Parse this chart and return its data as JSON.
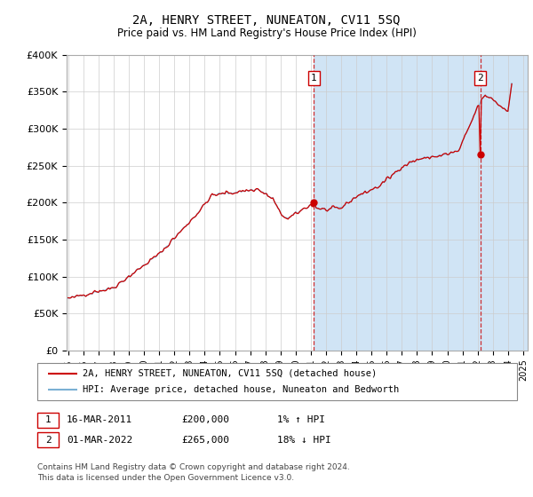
{
  "title": "2A, HENRY STREET, NUNEATON, CV11 5SQ",
  "subtitle": "Price paid vs. HM Land Registry's House Price Index (HPI)",
  "ylabel_ticks": [
    "£0",
    "£50K",
    "£100K",
    "£150K",
    "£200K",
    "£250K",
    "£300K",
    "£350K",
    "£400K"
  ],
  "ytick_vals": [
    0,
    50000,
    100000,
    150000,
    200000,
    250000,
    300000,
    350000,
    400000
  ],
  "ylim": [
    0,
    400000
  ],
  "xlim_start": 1994.9,
  "xlim_end": 2025.3,
  "bg_color": "#e8f0f8",
  "plot_bg": "#ffffff",
  "shade_color": "#d0e4f5",
  "line_color_hpi": "#7ab0d4",
  "line_color_price": "#cc0000",
  "point1_x": 2011.21,
  "point1_y": 200000,
  "point2_x": 2022.17,
  "point2_y": 265000,
  "vline1_x": 2011.21,
  "vline2_x": 2022.17,
  "legend_label1": "2A, HENRY STREET, NUNEATON, CV11 5SQ (detached house)",
  "legend_label2": "HPI: Average price, detached house, Nuneaton and Bedworth",
  "note1_num": "1",
  "note1_date": "16-MAR-2011",
  "note1_price": "£200,000",
  "note1_hpi": "1% ↑ HPI",
  "note2_num": "2",
  "note2_date": "01-MAR-2022",
  "note2_price": "£265,000",
  "note2_hpi": "18% ↓ HPI",
  "footer": "Contains HM Land Registry data © Crown copyright and database right 2024.\nThis data is licensed under the Open Government Licence v3.0.",
  "grid_color": "#cccccc",
  "spine_color": "#aaaaaa"
}
